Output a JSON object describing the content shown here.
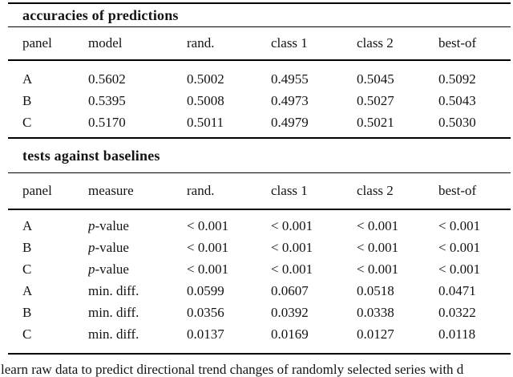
{
  "page": {
    "background": "#ffffff",
    "text_color": "#141414",
    "rule_color": "#000000"
  },
  "accuracies_table": {
    "title": "accuracies of predictions",
    "columns": [
      "panel",
      "model",
      "rand.",
      "class 1",
      "class 2",
      "best-of"
    ],
    "rows": [
      [
        "A",
        "0.5602",
        "0.5002",
        "0.4955",
        "0.5045",
        "0.5092"
      ],
      [
        "B",
        "0.5395",
        "0.5008",
        "0.4973",
        "0.5027",
        "0.5043"
      ],
      [
        "C",
        "0.5170",
        "0.5011",
        "0.4979",
        "0.5021",
        "0.5030"
      ]
    ]
  },
  "baseline_tests_table": {
    "title": "tests against baselines",
    "columns": [
      "panel",
      "measure",
      "rand.",
      "class 1",
      "class 2",
      "best-of"
    ],
    "rows": [
      [
        "A",
        "p-value",
        "< 0.001",
        "< 0.001",
        "< 0.001",
        "< 0.001"
      ],
      [
        "B",
        "p-value",
        "< 0.001",
        "< 0.001",
        "< 0.001",
        "< 0.001"
      ],
      [
        "C",
        "p-value",
        "< 0.001",
        "< 0.001",
        "< 0.001",
        "< 0.001"
      ],
      [
        "A",
        "min. diff.",
        "0.0599",
        "0.0607",
        "0.0518",
        "0.0471"
      ],
      [
        "B",
        "min. diff.",
        "0.0356",
        "0.0392",
        "0.0338",
        "0.0322"
      ],
      [
        "C",
        "min. diff.",
        "0.0137",
        "0.0169",
        "0.0127",
        "0.0118"
      ]
    ]
  },
  "caption": {
    "fragment": "learn raw data to predict directional trend changes of randomly selected series with d"
  }
}
